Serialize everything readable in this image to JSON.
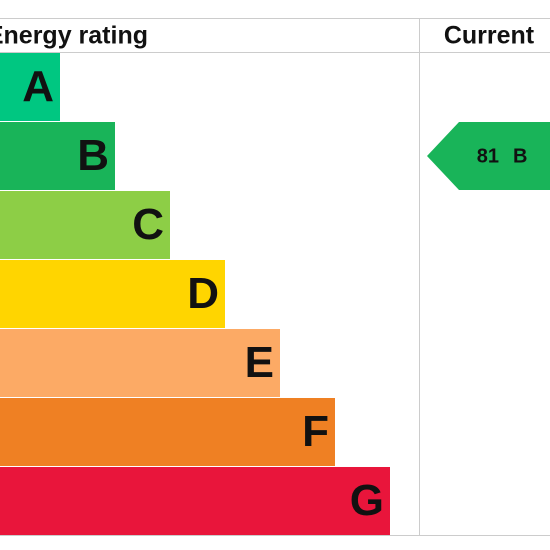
{
  "header": {
    "title": "Energy rating",
    "current": "Current"
  },
  "bands": [
    {
      "letter": "A",
      "color": "#00c781"
    },
    {
      "letter": "B",
      "color": "#19b459"
    },
    {
      "letter": "C",
      "color": "#8dce46"
    },
    {
      "letter": "D",
      "color": "#ffd500"
    },
    {
      "letter": "E",
      "color": "#fcaa65"
    },
    {
      "letter": "F",
      "color": "#ef8023"
    },
    {
      "letter": "G",
      "color": "#e9153b"
    }
  ],
  "current": {
    "value": 81,
    "band": "B",
    "color": "#19b459"
  }
}
